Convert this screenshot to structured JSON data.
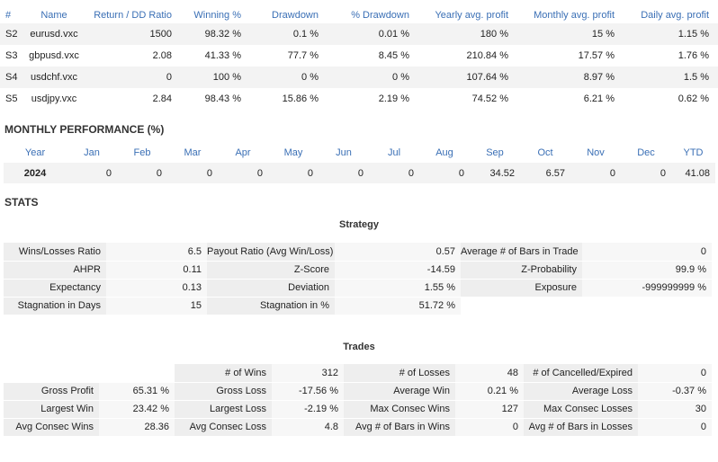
{
  "symbols": {
    "headers": [
      "#",
      "Name",
      "Return / DD Ratio",
      "Winning %",
      "Drawdown",
      "% Drawdown",
      "Yearly avg. profit",
      "Monthly avg. profit",
      "Daily avg. profit"
    ],
    "rows": [
      [
        "S2",
        "eurusd.vxc",
        "1500",
        "98.32 %",
        "0.1 %",
        "0.01 %",
        "180 %",
        "15 %",
        "1.15 %"
      ],
      [
        "S3",
        "gbpusd.vxc",
        "2.08",
        "41.33 %",
        "77.7 %",
        "8.45 %",
        "210.84 %",
        "17.57 %",
        "1.76 %"
      ],
      [
        "S4",
        "usdchf.vxc",
        "0",
        "100 %",
        "0 %",
        "0 %",
        "107.64 %",
        "8.97 %",
        "1.5 %"
      ],
      [
        "S5",
        "usdjpy.vxc",
        "2.84",
        "98.43 %",
        "15.86 %",
        "2.19 %",
        "74.52 %",
        "6.21 %",
        "0.62 %"
      ]
    ]
  },
  "monthly": {
    "title": "MONTHLY PERFORMANCE (%)",
    "headers": [
      "Year",
      "Jan",
      "Feb",
      "Mar",
      "Apr",
      "May",
      "Jun",
      "Jul",
      "Aug",
      "Sep",
      "Oct",
      "Nov",
      "Dec",
      "YTD"
    ],
    "rows": [
      [
        "2024",
        "0",
        "0",
        "0",
        "0",
        "0",
        "0",
        "0",
        "0",
        "34.52",
        "6.57",
        "0",
        "0",
        "41.08"
      ]
    ]
  },
  "stats": {
    "title": "STATS",
    "strategy": {
      "title": "Strategy",
      "rows": [
        [
          "Wins/Losses Ratio",
          "6.5",
          "Payout Ratio (Avg Win/Loss)",
          "0.57",
          "Average # of Bars in Trade",
          "0"
        ],
        [
          "AHPR",
          "0.11",
          "Z-Score",
          "-14.59",
          "Z-Probability",
          "99.9 %"
        ],
        [
          "Expectancy",
          "0.13",
          "Deviation",
          "1.55 %",
          "Exposure",
          "-999999999 %"
        ],
        [
          "Stagnation in Days",
          "15",
          "Stagnation in %",
          "51.72 %",
          "",
          ""
        ]
      ]
    },
    "trades": {
      "title": "Trades",
      "rows": [
        [
          "",
          "",
          "# of Wins",
          "312",
          "# of Losses",
          "48",
          "# of Cancelled/Expired",
          "0"
        ],
        [
          "Gross Profit",
          "65.31 %",
          "Gross Loss",
          "-17.56 %",
          "Average Win",
          "0.21 %",
          "Average Loss",
          "-0.37 %"
        ],
        [
          "Largest Win",
          "23.42 %",
          "Largest Loss",
          "-2.19 %",
          "Max Consec Wins",
          "127",
          "Max Consec Losses",
          "30"
        ],
        [
          "Avg Consec Wins",
          "28.36",
          "Avg Consec Loss",
          "4.8",
          "Avg # of Bars in Wins",
          "0",
          "Avg # of Bars in Losses",
          "0"
        ]
      ]
    }
  }
}
